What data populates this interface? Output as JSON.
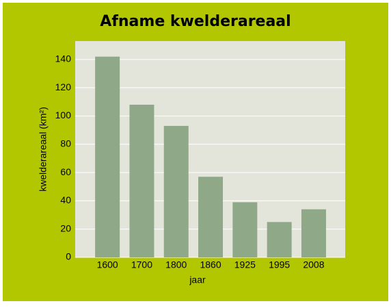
{
  "chart_data": {
    "type": "bar",
    "title": "Afname kwelderareaal",
    "x_label": "jaar",
    "y_label": "kwelderareaal (km²)",
    "categories": [
      "1600",
      "1700",
      "1800",
      "1860",
      "1925",
      "1995",
      "2008"
    ],
    "values": [
      142,
      108,
      93,
      57,
      39,
      25,
      34
    ],
    "color": "#8fa888",
    "ylim": [
      0,
      153
    ],
    "yticks": [
      0,
      20,
      40,
      60,
      80,
      100,
      120,
      140
    ],
    "grid": true
  }
}
